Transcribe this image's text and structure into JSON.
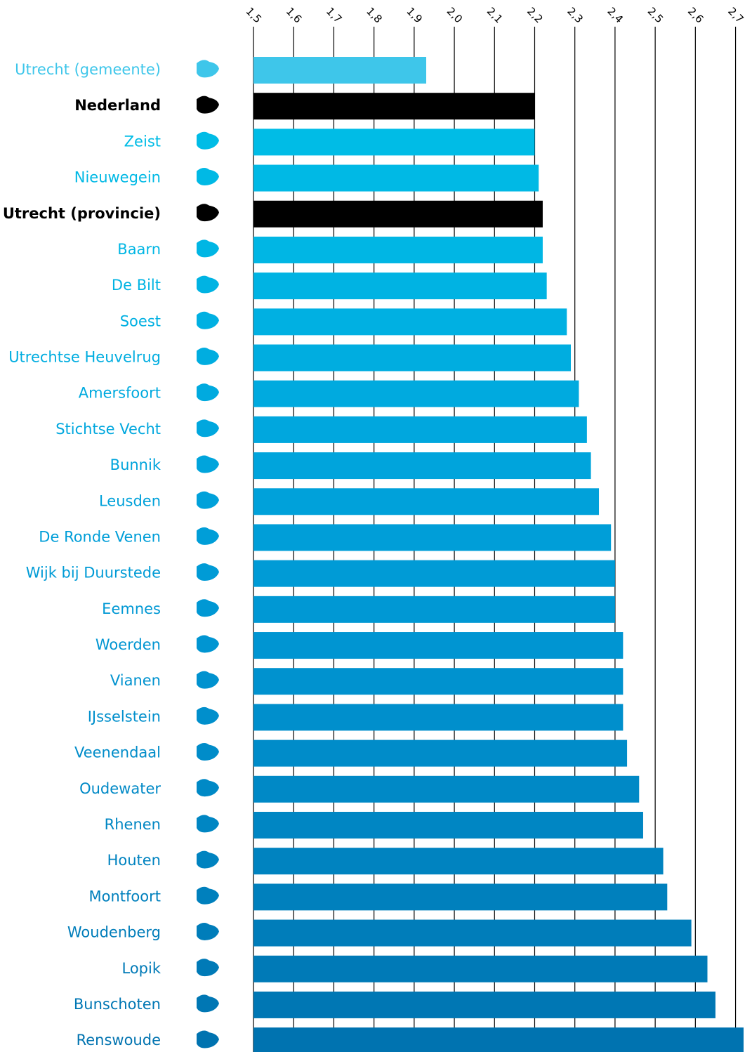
{
  "chart_data": {
    "type": "hbar",
    "categories": [
      "Utrecht (gemeente)",
      "Nederland",
      "Zeist",
      "Nieuwegein",
      "Utrecht (provincie)",
      "Baarn",
      "De Bilt",
      "Soest",
      "Utrechtse Heuvelrug",
      "Amersfoort",
      "Stichtse Vecht",
      "Bunnik",
      "Leusden",
      "De Ronde Venen",
      "Wijk bij Duurstede",
      "Eemnes",
      "Woerden",
      "Vianen",
      "IJsselstein",
      "Veenendaal",
      "Oudewater",
      "Rhenen",
      "Houten",
      "Montfoort",
      "Woudenberg",
      "Lopik",
      "Bunschoten",
      "Renswoude"
    ],
    "values": [
      1.93,
      2.2,
      2.2,
      2.21,
      2.22,
      2.22,
      2.23,
      2.28,
      2.29,
      2.31,
      2.33,
      2.34,
      2.36,
      2.39,
      2.4,
      2.4,
      2.42,
      2.42,
      2.42,
      2.43,
      2.46,
      2.47,
      2.52,
      2.53,
      2.59,
      2.63,
      2.65,
      2.72
    ],
    "colors": [
      "#3ec6ea",
      "#000000",
      "#00bce6",
      "#00b9e5",
      "#000000",
      "#00b6e4",
      "#00b3e3",
      "#00b0e2",
      "#00ade0",
      "#00aadf",
      "#00a7de",
      "#00a4dc",
      "#00a1da",
      "#009ed8",
      "#009bd6",
      "#0098d4",
      "#0095d2",
      "#0092cf",
      "#008fcc",
      "#008cc9",
      "#0089c6",
      "#0086c3",
      "#0083c0",
      "#0080bd",
      "#007dba",
      "#007ab7",
      "#0077b4",
      "#0073b0"
    ],
    "xlim": [
      1.5,
      2.72
    ],
    "xticks": [
      {
        "value": 1.5,
        "label": "1,5"
      },
      {
        "value": 1.6,
        "label": "1,6"
      },
      {
        "value": 1.7,
        "label": "1,7"
      },
      {
        "value": 1.8,
        "label": "1,8"
      },
      {
        "value": 1.9,
        "label": "1,9"
      },
      {
        "value": 2.0,
        "label": "2,0"
      },
      {
        "value": 2.1,
        "label": "2,1"
      },
      {
        "value": 2.2,
        "label": "2,2"
      },
      {
        "value": 2.3,
        "label": "2,3"
      },
      {
        "value": 2.4,
        "label": "2,4"
      },
      {
        "value": 2.5,
        "label": "2,5"
      },
      {
        "value": 2.6,
        "label": "2,6"
      },
      {
        "value": 2.7,
        "label": "2,7"
      }
    ],
    "grid": true
  }
}
